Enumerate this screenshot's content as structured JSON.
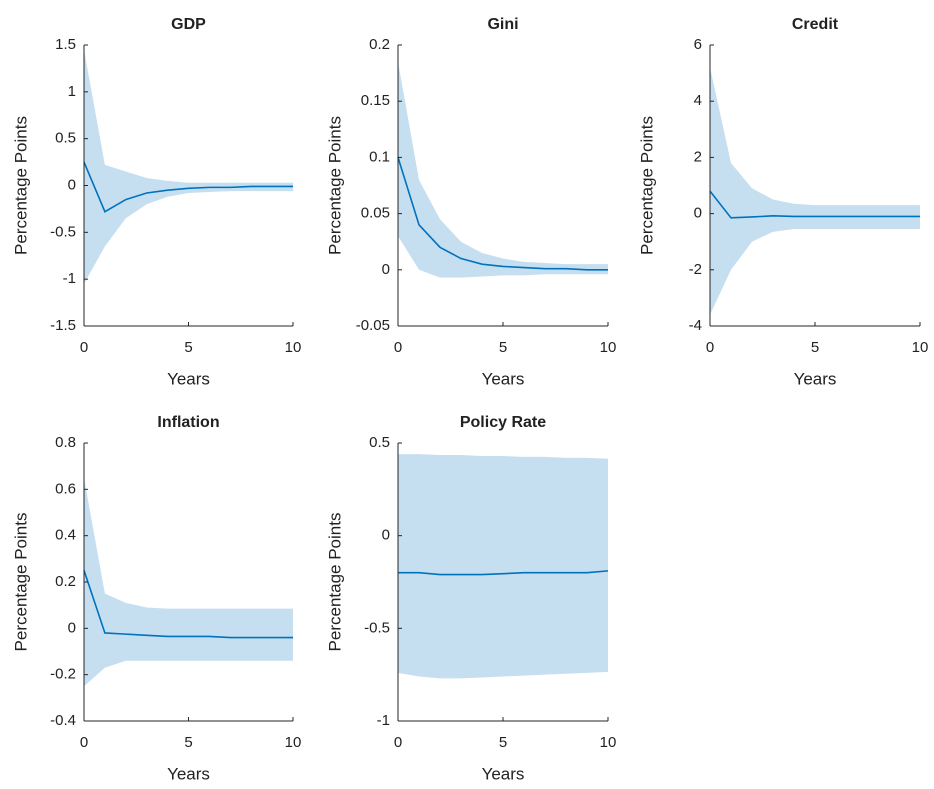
{
  "chart_data": [
    {
      "type": "line",
      "title": "GDP",
      "xlabel": "Years",
      "ylabel": "Percentage Points",
      "x": [
        0,
        1,
        2,
        3,
        4,
        5,
        6,
        7,
        8,
        9,
        10
      ],
      "values": [
        0.25,
        -0.28,
        -0.15,
        -0.08,
        -0.05,
        -0.03,
        -0.02,
        -0.02,
        -0.01,
        -0.01,
        -0.01
      ],
      "upper": [
        1.45,
        0.22,
        0.15,
        0.08,
        0.05,
        0.03,
        0.03,
        0.03,
        0.03,
        0.03,
        0.03
      ],
      "lower": [
        -1.05,
        -0.65,
        -0.35,
        -0.2,
        -0.12,
        -0.08,
        -0.07,
        -0.06,
        -0.06,
        -0.06,
        -0.06
      ],
      "color": "#0072bd",
      "band_color": "#c6dff0",
      "xlim": [
        0,
        10
      ],
      "xticks": [
        0,
        5,
        10
      ],
      "ylim": [
        -1.5,
        1.5
      ],
      "yticks": [
        -1.5,
        -1,
        -0.5,
        0,
        0.5,
        1,
        1.5
      ]
    },
    {
      "type": "line",
      "title": "Gini",
      "xlabel": "Years",
      "ylabel": "Percentage Points",
      "x": [
        0,
        1,
        2,
        3,
        4,
        5,
        6,
        7,
        8,
        9,
        10
      ],
      "values": [
        0.1,
        0.04,
        0.02,
        0.01,
        0.005,
        0.003,
        0.002,
        0.001,
        0.001,
        0,
        0
      ],
      "upper": [
        0.185,
        0.08,
        0.045,
        0.025,
        0.015,
        0.01,
        0.007,
        0.006,
        0.005,
        0.005,
        0.005
      ],
      "lower": [
        0.03,
        0,
        -0.007,
        -0.007,
        -0.006,
        -0.005,
        -0.005,
        -0.004,
        -0.004,
        -0.004,
        -0.004
      ],
      "color": "#0072bd",
      "band_color": "#c6dff0",
      "xlim": [
        0,
        10
      ],
      "xticks": [
        0,
        5,
        10
      ],
      "ylim": [
        -0.05,
        0.2
      ],
      "yticks": [
        -0.05,
        0,
        0.05,
        0.1,
        0.15,
        0.2
      ]
    },
    {
      "type": "line",
      "title": "Credit",
      "xlabel": "Years",
      "ylabel": "Percentage Points",
      "x": [
        0,
        1,
        2,
        3,
        4,
        5,
        6,
        7,
        8,
        9,
        10
      ],
      "values": [
        0.8,
        -0.15,
        -0.12,
        -0.08,
        -0.1,
        -0.1,
        -0.1,
        -0.1,
        -0.1,
        -0.1,
        -0.1
      ],
      "upper": [
        5.2,
        1.8,
        0.9,
        0.5,
        0.35,
        0.3,
        0.3,
        0.3,
        0.3,
        0.3,
        0.3
      ],
      "lower": [
        -3.6,
        -2,
        -1,
        -0.65,
        -0.55,
        -0.55,
        -0.55,
        -0.55,
        -0.55,
        -0.55,
        -0.55
      ],
      "color": "#0072bd",
      "band_color": "#c6dff0",
      "xlim": [
        0,
        10
      ],
      "xticks": [
        0,
        5,
        10
      ],
      "ylim": [
        -4,
        6
      ],
      "yticks": [
        -4,
        -2,
        0,
        2,
        4,
        6
      ]
    },
    {
      "type": "line",
      "title": "Inflation",
      "xlabel": "Years",
      "ylabel": "Percentage Points",
      "x": [
        0,
        1,
        2,
        3,
        4,
        5,
        6,
        7,
        8,
        9,
        10
      ],
      "values": [
        0.25,
        -0.02,
        -0.025,
        -0.03,
        -0.035,
        -0.035,
        -0.035,
        -0.04,
        -0.04,
        -0.04,
        -0.04
      ],
      "upper": [
        0.65,
        0.15,
        0.11,
        0.09,
        0.085,
        0.085,
        0.085,
        0.085,
        0.085,
        0.085,
        0.085
      ],
      "lower": [
        -0.25,
        -0.17,
        -0.14,
        -0.14,
        -0.14,
        -0.14,
        -0.14,
        -0.14,
        -0.14,
        -0.14,
        -0.14
      ],
      "color": "#0072bd",
      "band_color": "#c6dff0",
      "xlim": [
        0,
        10
      ],
      "xticks": [
        0,
        5,
        10
      ],
      "ylim": [
        -0.4,
        0.8
      ],
      "yticks": [
        -0.4,
        -0.2,
        0,
        0.2,
        0.4,
        0.6,
        0.8
      ]
    },
    {
      "type": "line",
      "title": "Policy Rate",
      "xlabel": "Years",
      "ylabel": "Percentage Points",
      "x": [
        0,
        1,
        2,
        3,
        4,
        5,
        6,
        7,
        8,
        9,
        10
      ],
      "values": [
        -0.2,
        -0.2,
        -0.21,
        -0.21,
        -0.21,
        -0.205,
        -0.2,
        -0.2,
        -0.2,
        -0.2,
        -0.19
      ],
      "upper": [
        0.44,
        0.44,
        0.435,
        0.435,
        0.43,
        0.43,
        0.425,
        0.425,
        0.42,
        0.42,
        0.415
      ],
      "lower": [
        -0.74,
        -0.76,
        -0.77,
        -0.77,
        -0.765,
        -0.76,
        -0.755,
        -0.75,
        -0.745,
        -0.74,
        -0.735
      ],
      "color": "#0072bd",
      "band_color": "#c6dff0",
      "xlim": [
        0,
        10
      ],
      "xticks": [
        0,
        5,
        10
      ],
      "ylim": [
        -1,
        0.5
      ],
      "yticks": [
        -1,
        -0.5,
        0,
        0.5
      ]
    }
  ]
}
